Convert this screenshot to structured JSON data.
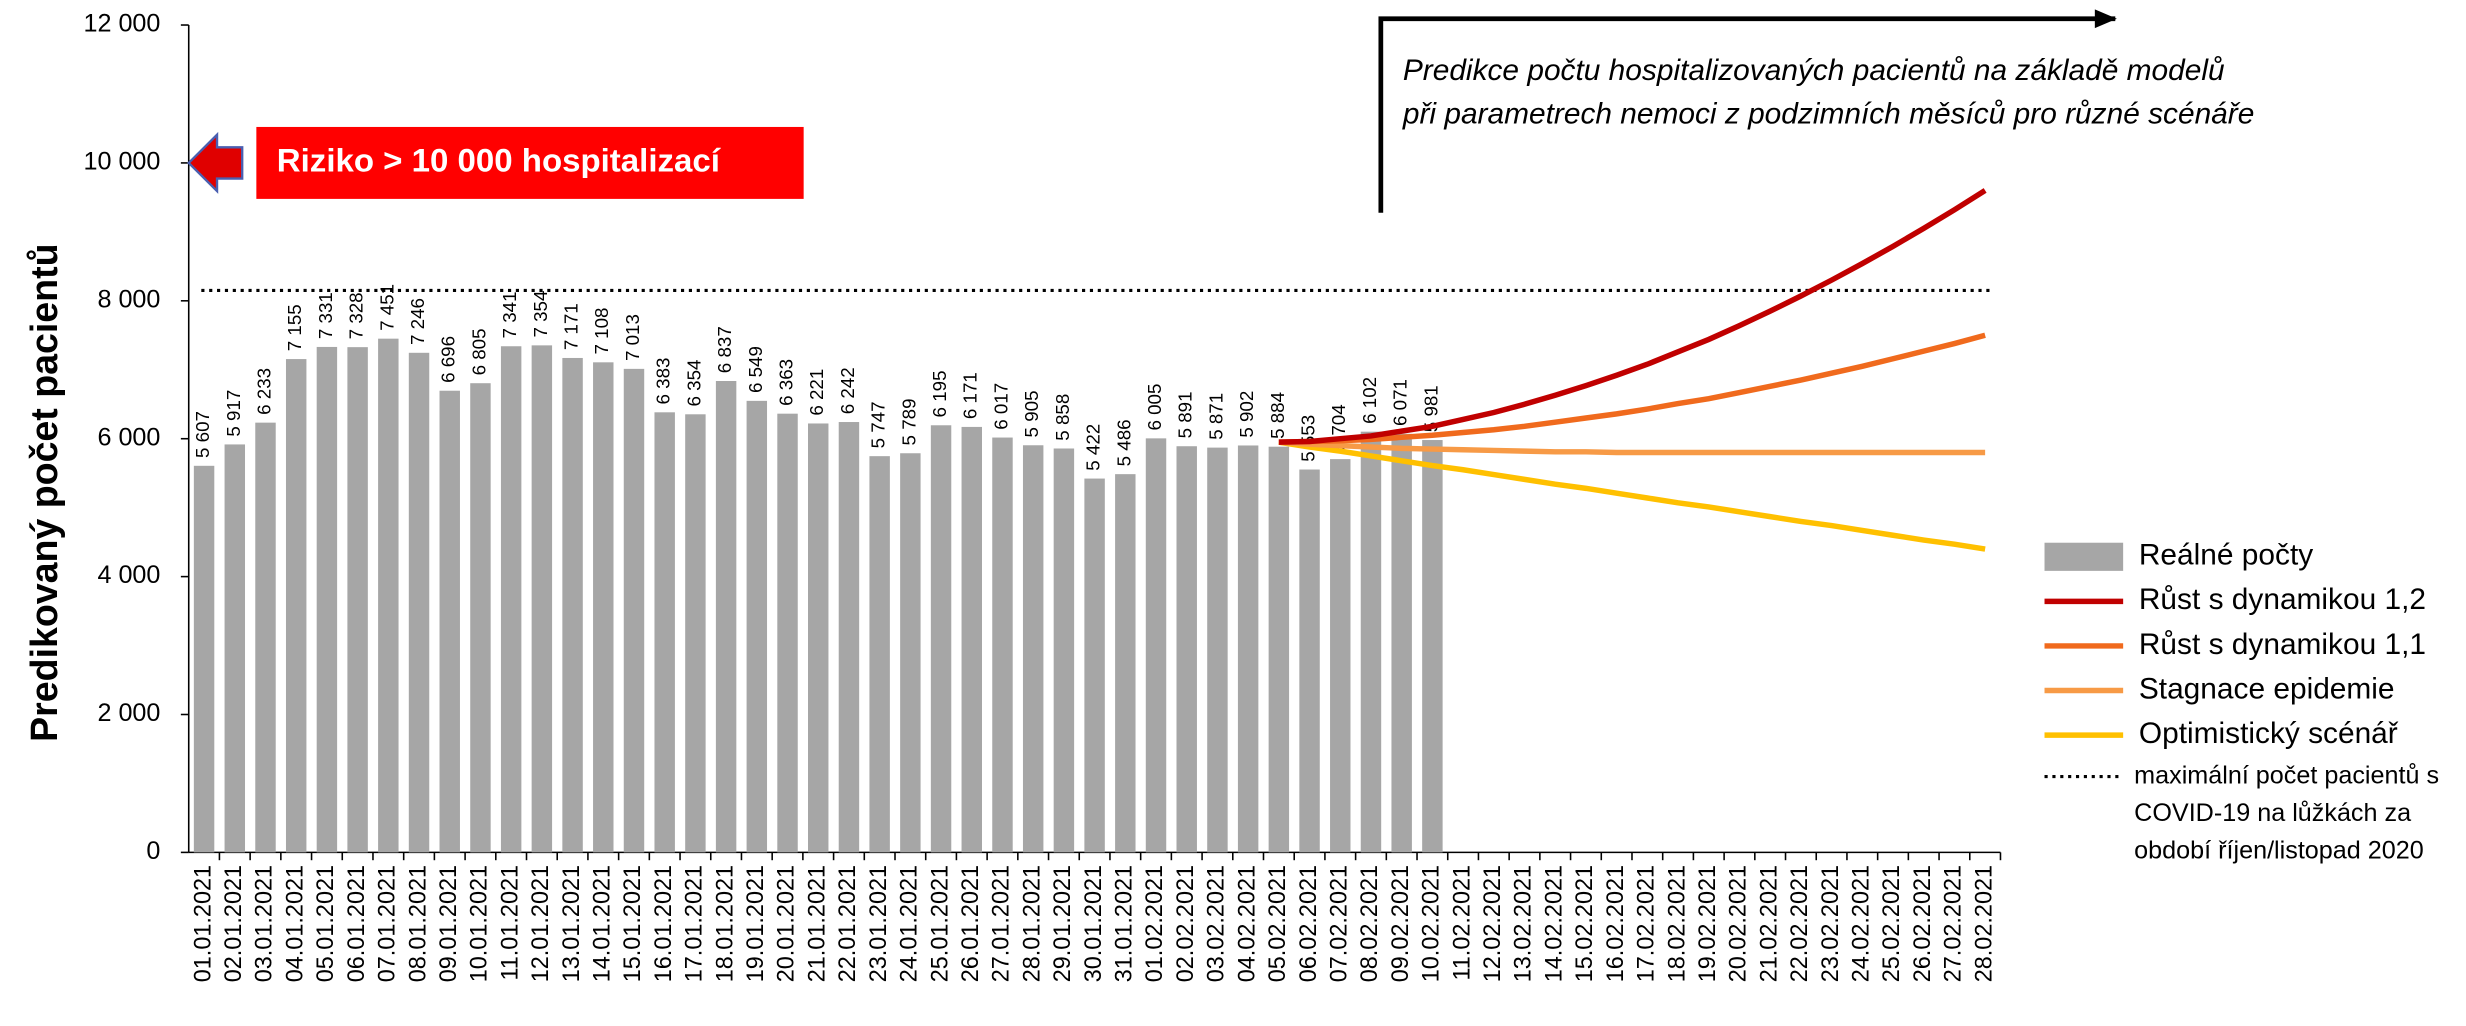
{
  "chart_data": {
    "type": "bar",
    "ylabel": "Predikovaný počet pacientů",
    "categories": [
      "01.01.2021",
      "02.01.2021",
      "03.01.2021",
      "04.01.2021",
      "05.01.2021",
      "06.01.2021",
      "07.01.2021",
      "08.01.2021",
      "09.01.2021",
      "10.01.2021",
      "11.01.2021",
      "12.01.2021",
      "13.01.2021",
      "14.01.2021",
      "15.01.2021",
      "16.01.2021",
      "17.01.2021",
      "18.01.2021",
      "19.01.2021",
      "20.01.2021",
      "21.01.2021",
      "22.01.2021",
      "23.01.2021",
      "24.01.2021",
      "25.01.2021",
      "26.01.2021",
      "27.01.2021",
      "28.01.2021",
      "29.01.2021",
      "30.01.2021",
      "31.01.2021",
      "01.02.2021",
      "02.02.2021",
      "03.02.2021",
      "04.02.2021",
      "05.02.2021",
      "06.02.2021",
      "07.02.2021",
      "08.02.2021",
      "09.02.2021",
      "10.02.2021",
      "11.02.2021",
      "12.02.2021",
      "13.02.2021",
      "14.02.2021",
      "15.02.2021",
      "16.02.2021",
      "17.02.2021",
      "18.02.2021",
      "19.02.2021",
      "20.02.2021",
      "21.02.2021",
      "22.02.2021",
      "23.02.2021",
      "24.02.2021",
      "25.02.2021",
      "26.02.2021",
      "27.02.2021",
      "28.02.2021"
    ],
    "series": [
      {
        "name": "Reálné počty",
        "type": "bar",
        "color": "#a6a6a6",
        "values": [
          5607,
          5917,
          6233,
          7155,
          7331,
          7328,
          7451,
          7246,
          6696,
          6805,
          7341,
          7354,
          7171,
          7108,
          7013,
          6383,
          6354,
          6837,
          6549,
          6363,
          6221,
          6242,
          5747,
          5789,
          6195,
          6171,
          6017,
          5905,
          5858,
          5422,
          5486,
          6005,
          5891,
          5871,
          5902,
          5884,
          5553,
          5704,
          6102,
          6071,
          5981,
          null,
          null,
          null,
          null,
          null,
          null,
          null,
          null,
          null,
          null,
          null,
          null,
          null,
          null,
          null,
          null,
          null,
          null
        ],
        "value_labels": [
          "5 607",
          "5 917",
          "6 233",
          "7 155",
          "7 331",
          "7 328",
          "7 451",
          "7 246",
          "6 696",
          "6 805",
          "7 341",
          "7 354",
          "7 171",
          "7 108",
          "7 013",
          "6 383",
          "6 354",
          "6 837",
          "6 549",
          "6 363",
          "6 221",
          "6 242",
          "5 747",
          "5 789",
          "6 195",
          "6 171",
          "6 017",
          "5 905",
          "5 858",
          "5 422",
          "5 486",
          "6 005",
          "5 891",
          "5 871",
          "5 902",
          "5 884",
          "5 553",
          "5 704",
          "6 102",
          "6 071",
          "5 981",
          null,
          null,
          null,
          null,
          null,
          null,
          null,
          null,
          null,
          null,
          null,
          null,
          null,
          null,
          null,
          null,
          null,
          null
        ]
      },
      {
        "name": "Růst s dynamikou 1,2",
        "type": "line",
        "color": "#c00000",
        "values": [
          null,
          null,
          null,
          null,
          null,
          null,
          null,
          null,
          null,
          null,
          null,
          null,
          null,
          null,
          null,
          null,
          null,
          null,
          null,
          null,
          null,
          null,
          null,
          null,
          null,
          null,
          null,
          null,
          null,
          null,
          null,
          null,
          null,
          null,
          null,
          5950,
          5960,
          6000,
          6040,
          6110,
          6180,
          6280,
          6380,
          6500,
          6630,
          6770,
          6920,
          7080,
          7260,
          7440,
          7640,
          7850,
          8070,
          8300,
          8540,
          8790,
          9050,
          9320,
          9600
        ]
      },
      {
        "name": "Růst s dynamikou 1,1",
        "type": "line",
        "color": "#f06a1d",
        "values": [
          null,
          null,
          null,
          null,
          null,
          null,
          null,
          null,
          null,
          null,
          null,
          null,
          null,
          null,
          null,
          null,
          null,
          null,
          null,
          null,
          null,
          null,
          null,
          null,
          null,
          null,
          null,
          null,
          null,
          null,
          null,
          null,
          null,
          null,
          null,
          5950,
          5960,
          5970,
          5990,
          6020,
          6050,
          6090,
          6130,
          6180,
          6240,
          6300,
          6360,
          6430,
          6510,
          6580,
          6670,
          6760,
          6850,
          6950,
          7050,
          7160,
          7270,
          7380,
          7500
        ]
      },
      {
        "name": "Stagnace epidemie",
        "type": "line",
        "color": "#f79a46",
        "values": [
          null,
          null,
          null,
          null,
          null,
          null,
          null,
          null,
          null,
          null,
          null,
          null,
          null,
          null,
          null,
          null,
          null,
          null,
          null,
          null,
          null,
          null,
          null,
          null,
          null,
          null,
          null,
          null,
          null,
          null,
          null,
          null,
          null,
          null,
          null,
          5950,
          5920,
          5900,
          5880,
          5860,
          5850,
          5840,
          5830,
          5820,
          5810,
          5810,
          5800,
          5800,
          5800,
          5800,
          5800,
          5800,
          5800,
          5800,
          5800,
          5800,
          5800,
          5800,
          5800
        ]
      },
      {
        "name": "Optimistický scénář",
        "type": "line",
        "color": "#ffc000",
        "values": [
          null,
          null,
          null,
          null,
          null,
          null,
          null,
          null,
          null,
          null,
          null,
          null,
          null,
          null,
          null,
          null,
          null,
          null,
          null,
          null,
          null,
          null,
          null,
          null,
          null,
          null,
          null,
          null,
          null,
          null,
          null,
          null,
          null,
          null,
          null,
          5950,
          5880,
          5820,
          5750,
          5680,
          5610,
          5550,
          5480,
          5410,
          5340,
          5280,
          5210,
          5140,
          5070,
          5010,
          4940,
          4870,
          4800,
          4740,
          4670,
          4600,
          4530,
          4470,
          4400
        ]
      }
    ],
    "reference_line": {
      "value": 8150,
      "label": "maximální počet pacientů s COVID-19 na lůžkách za období říjen/listopad 2020"
    },
    "risk_marker": {
      "value": 10000,
      "label": "Riziko > 10 000 hospitalizací"
    },
    "annotation": [
      "Predikce počtu hospitalizovaných pacientů na základě modelů",
      "při parametrech nemoci z podzimních měsíců pro různé scénáře"
    ],
    "ylim": [
      0,
      12000
    ],
    "yticks": [
      0,
      {
        "value": 2000,
        "label": "2 000"
      },
      {
        "value": 4000,
        "label": "4 000"
      },
      {
        "value": 6000,
        "label": "6 000"
      },
      {
        "value": 8000,
        "label": "8 000"
      },
      {
        "value": 10000,
        "label": "10 000"
      },
      {
        "value": 12000,
        "label": "12 000"
      }
    ]
  }
}
